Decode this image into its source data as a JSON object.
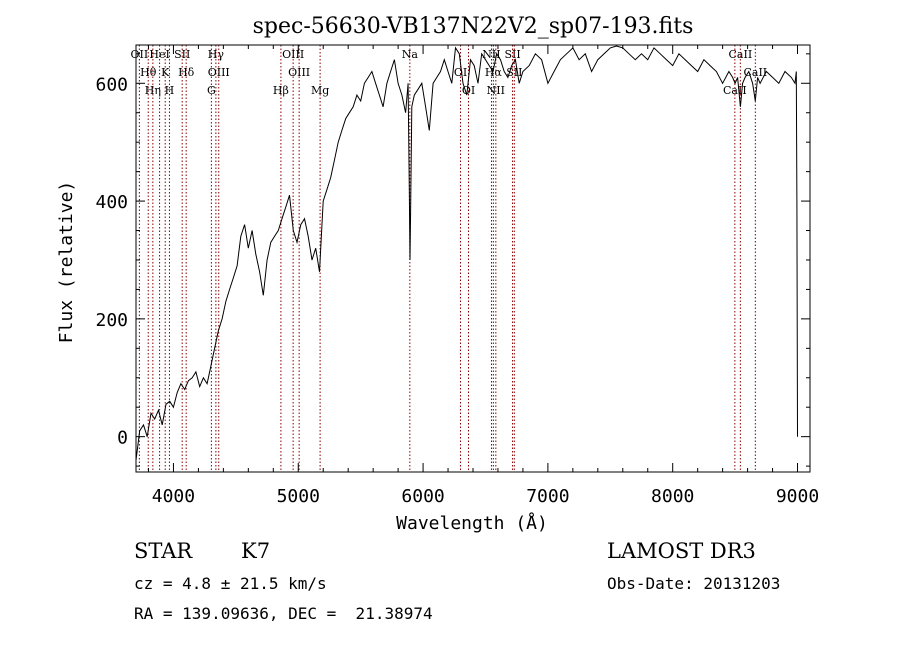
{
  "chart_data": {
    "type": "line",
    "title": "spec-56630-VB137N22V2_sp07-193.fits",
    "xlabel": "Wavelength (Å)",
    "ylabel": "Flux (relative)",
    "xlim": [
      3700,
      9100
    ],
    "ylim": [
      -60,
      665
    ],
    "xticks": [
      4000,
      5000,
      6000,
      7000,
      8000,
      9000
    ],
    "yticks": [
      0,
      200,
      400,
      600
    ],
    "xtick_labels": [
      "4000",
      "5000",
      "6000",
      "7000",
      "8000",
      "9000"
    ],
    "ytick_labels": [
      "0",
      "200",
      "400",
      "600"
    ],
    "series": [
      {
        "x": [
          3700,
          3730,
          3760,
          3790,
          3820,
          3850,
          3880,
          3910,
          3940,
          3970,
          4000,
          4030,
          4060,
          4090,
          4120,
          4150,
          4180,
          4210,
          4240,
          4270,
          4300,
          4330,
          4360,
          4390,
          4420,
          4450,
          4480,
          4510,
          4540,
          4570,
          4600,
          4630,
          4660,
          4690,
          4720,
          4750,
          4780,
          4810,
          4840,
          4870,
          4900,
          4930,
          4960,
          4990,
          5020,
          5050,
          5080,
          5110,
          5140,
          5170,
          5200,
          5230,
          5260,
          5290,
          5320,
          5350,
          5380,
          5410,
          5440,
          5470,
          5500,
          5530,
          5560,
          5590,
          5620,
          5650,
          5680,
          5710,
          5740,
          5770,
          5800,
          5830,
          5860,
          5880,
          5890,
          5895,
          5900,
          5910,
          5930,
          5960,
          5990,
          6020,
          6050,
          6080,
          6110,
          6140,
          6170,
          6200,
          6230,
          6260,
          6290,
          6320,
          6350,
          6380,
          6410,
          6440,
          6470,
          6500,
          6530,
          6560,
          6590,
          6620,
          6650,
          6680,
          6710,
          6740,
          6770,
          6800,
          6850,
          6900,
          6950,
          7000,
          7050,
          7100,
          7150,
          7200,
          7250,
          7300,
          7350,
          7400,
          7450,
          7500,
          7550,
          7600,
          7650,
          7700,
          7750,
          7800,
          7850,
          7900,
          7950,
          8000,
          8050,
          8100,
          8150,
          8200,
          8250,
          8300,
          8350,
          8400,
          8450,
          8480,
          8500,
          8520,
          8542,
          8560,
          8580,
          8610,
          8640,
          8662,
          8680,
          8700,
          8750,
          8800,
          8850,
          8900,
          8950,
          8980,
          8990,
          8995,
          9000
        ],
        "y": [
          -40,
          10,
          20,
          0,
          40,
          30,
          45,
          20,
          55,
          60,
          50,
          75,
          90,
          80,
          95,
          100,
          110,
          85,
          100,
          90,
          120,
          150,
          180,
          200,
          230,
          250,
          270,
          290,
          340,
          360,
          320,
          350,
          310,
          280,
          240,
          300,
          330,
          340,
          350,
          370,
          390,
          410,
          350,
          330,
          360,
          370,
          340,
          300,
          320,
          280,
          400,
          420,
          440,
          470,
          500,
          520,
          540,
          550,
          560,
          580,
          570,
          600,
          610,
          620,
          600,
          580,
          560,
          600,
          620,
          640,
          600,
          580,
          550,
          600,
          420,
          300,
          380,
          560,
          580,
          590,
          600,
          560,
          520,
          600,
          610,
          620,
          640,
          620,
          600,
          660,
          650,
          600,
          580,
          640,
          630,
          600,
          650,
          640,
          630,
          620,
          650,
          640,
          620,
          610,
          630,
          640,
          600,
          620,
          630,
          650,
          640,
          600,
          620,
          640,
          650,
          660,
          640,
          650,
          620,
          640,
          650,
          660,
          670,
          660,
          650,
          640,
          650,
          640,
          660,
          650,
          640,
          630,
          650,
          640,
          630,
          620,
          640,
          630,
          620,
          600,
          620,
          610,
          600,
          610,
          560,
          600,
          610,
          620,
          600,
          570,
          610,
          600,
          620,
          610,
          600,
          620,
          610,
          600,
          620,
          400,
          0
        ]
      }
    ],
    "line_markers": [
      {
        "label": "OII",
        "wavelength": 3727
      },
      {
        "label": "Hθ",
        "wavelength": 3798
      },
      {
        "label": "Hη",
        "wavelength": 3835
      },
      {
        "label": "HeI",
        "wavelength": 3889
      },
      {
        "label": "K",
        "wavelength": 3934
      },
      {
        "label": "H",
        "wavelength": 3968
      },
      {
        "label": "SII",
        "wavelength": 4070
      },
      {
        "label": "Hδ",
        "wavelength": 4102
      },
      {
        "label": "G",
        "wavelength": 4304
      },
      {
        "label": "Hγ",
        "wavelength": 4340
      },
      {
        "label": "OIII",
        "wavelength": 4363
      },
      {
        "label": "Hβ",
        "wavelength": 4861
      },
      {
        "label": "OIII",
        "wavelength": 4959
      },
      {
        "label": "OIII",
        "wavelength": 5007
      },
      {
        "label": "Mg",
        "wavelength": 5175
      },
      {
        "label": "Na",
        "wavelength": 5894
      },
      {
        "label": "OI",
        "wavelength": 6300
      },
      {
        "label": "OI",
        "wavelength": 6364
      },
      {
        "label": "NII",
        "wavelength": 6548
      },
      {
        "label": "Hα",
        "wavelength": 6563
      },
      {
        "label": "NII",
        "wavelength": 6583
      },
      {
        "label": "SII",
        "wavelength": 6717
      },
      {
        "label": "SII",
        "wavelength": 6731
      },
      {
        "label": "CaII",
        "wavelength": 8498
      },
      {
        "label": "CaII",
        "wavelength": 8542
      },
      {
        "label": "CaII",
        "wavelength": 8662
      }
    ],
    "marker_color": "#8b0000",
    "grid": false,
    "legend": "none"
  },
  "info": {
    "object_class": "STAR",
    "subclass": "K7",
    "survey": "LAMOST DR3",
    "redshift": "cz = 4.8 ± 21.5 km/s",
    "obs_date": "Obs-Date: 20131203",
    "coords": "RA = 139.09636, DEC =  21.38974"
  }
}
